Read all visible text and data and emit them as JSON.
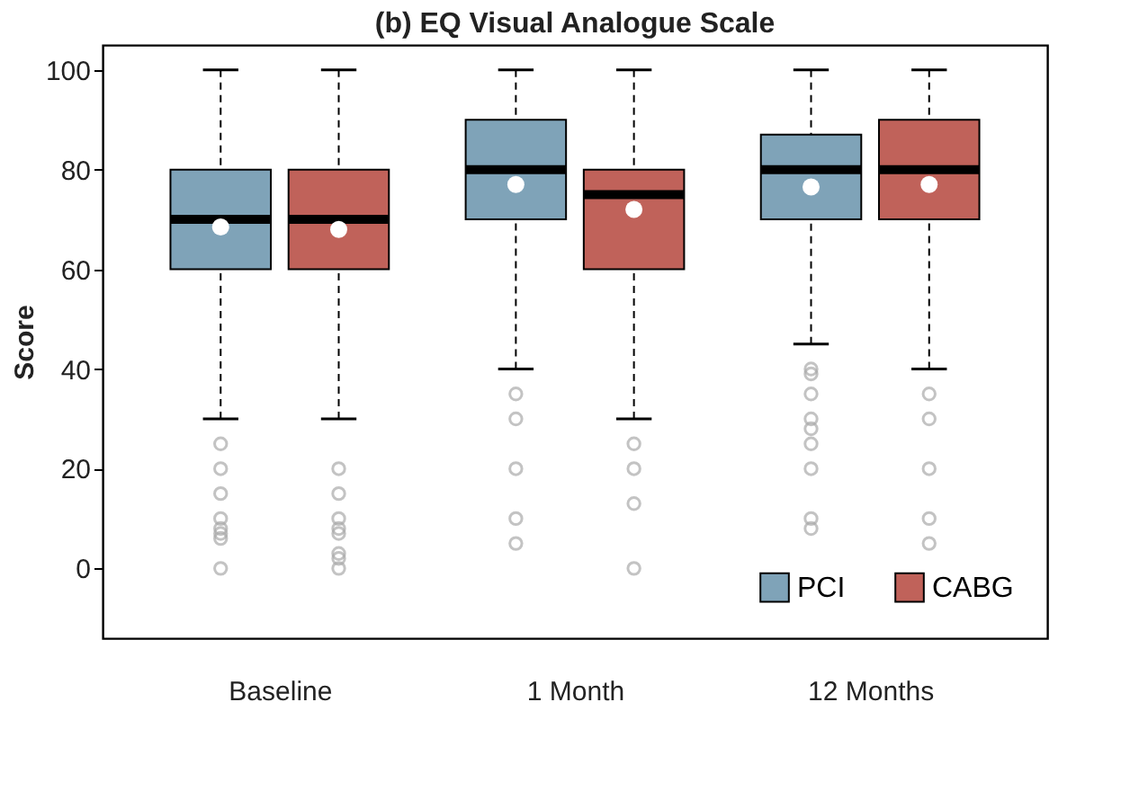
{
  "chart_data": {
    "type": "box",
    "title": "(b) EQ Visual Analogue Scale",
    "ylabel": "Score",
    "categories": [
      "Baseline",
      "1 Month",
      "12 Months"
    ],
    "series": [
      {
        "name": "PCI",
        "color": "#7fa3b8",
        "boxes": [
          {
            "low": 30,
            "q1": 60,
            "median": 70,
            "q3": 80,
            "high": 100,
            "mean": 68.5,
            "outliers": [
              25,
              20,
              15,
              10,
              8,
              7,
              6,
              0
            ]
          },
          {
            "low": 40,
            "q1": 70,
            "median": 80,
            "q3": 90,
            "high": 100,
            "mean": 77,
            "outliers": [
              35,
              30,
              20,
              10,
              5
            ]
          },
          {
            "low": 45,
            "q1": 70,
            "median": 80,
            "q3": 87,
            "high": 100,
            "mean": 76.5,
            "outliers": [
              40,
              39,
              35,
              30,
              28,
              25,
              20,
              10,
              8
            ]
          }
        ]
      },
      {
        "name": "CABG",
        "color": "#c0625a",
        "boxes": [
          {
            "low": 30,
            "q1": 60,
            "median": 70,
            "q3": 80,
            "high": 100,
            "mean": 68,
            "outliers": [
              20,
              15,
              10,
              8,
              7,
              3,
              2,
              0
            ]
          },
          {
            "low": 30,
            "q1": 60,
            "median": 75,
            "q3": 80,
            "high": 100,
            "mean": 72,
            "outliers": [
              25,
              20,
              13,
              0
            ]
          },
          {
            "low": 40,
            "q1": 70,
            "median": 80,
            "q3": 90,
            "high": 100,
            "mean": 77,
            "outliers": [
              35,
              30,
              20,
              10,
              5
            ]
          }
        ]
      }
    ],
    "ylim": [
      -14,
      105
    ],
    "yticks": [
      0,
      20,
      40,
      60,
      80,
      100
    ],
    "grid": false,
    "legend": "bottom right"
  }
}
